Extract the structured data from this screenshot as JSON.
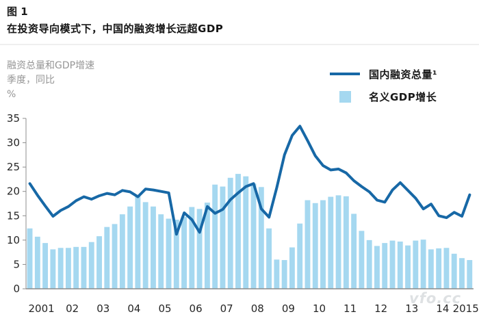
{
  "header": {
    "figure_label": "图 1",
    "title": "在投资导向模式下，中国的融资增长远超GDP"
  },
  "y_axis_unit": {
    "line1": "融资总量和GDP增速",
    "line2": "季度，同比",
    "line3": "%"
  },
  "legend": {
    "line_label": "国内融资总量¹",
    "bar_label": "名义GDP增长"
  },
  "watermark": "vfo.cc",
  "colors": {
    "line": "#1768a6",
    "bar": "#a5d8f0",
    "axis": "#8c8c8c",
    "tick_text": "#262626"
  },
  "chart_data": {
    "type": "bar",
    "note": "quarterly data 2001Q1–2015Q2; dark line = domestic total financing growth, light bars = nominal GDP growth, % y/y",
    "x_year_labels": [
      "2001",
      "02",
      "03",
      "04",
      "05",
      "06",
      "07",
      "08",
      "09",
      "10",
      "11",
      "12",
      "13",
      "14",
      "2015"
    ],
    "bars_per_year": [
      4,
      4,
      4,
      4,
      4,
      4,
      4,
      4,
      4,
      4,
      4,
      4,
      4,
      4,
      2
    ],
    "ylim": [
      0,
      35
    ],
    "yticks": [
      0,
      5,
      10,
      15,
      20,
      25,
      30,
      35
    ],
    "grid": false,
    "legend_position": "top-right",
    "series": [
      {
        "name": "国内融资总量¹",
        "type": "line",
        "color": "#1768a6",
        "values": [
          21.6,
          19.2,
          17.0,
          14.9,
          16.1,
          16.9,
          18.1,
          18.9,
          18.4,
          19.1,
          19.6,
          19.3,
          20.2,
          19.9,
          18.9,
          20.5,
          20.3,
          20.0,
          19.7,
          11.2,
          15.6,
          14.2,
          11.6,
          16.9,
          15.5,
          16.3,
          18.3,
          19.7,
          21.0,
          21.6,
          16.4,
          14.7,
          20.8,
          27.5,
          31.5,
          33.4,
          30.4,
          27.3,
          25.3,
          24.4,
          24.6,
          23.8,
          22.2,
          21.0,
          19.9,
          18.2,
          17.8,
          20.3,
          21.8,
          20.2,
          18.6,
          16.4,
          17.4,
          15.0,
          14.6,
          15.7,
          14.9,
          19.3
        ]
      },
      {
        "name": "名义GDP增长",
        "type": "bar",
        "color": "#a5d8f0",
        "values": [
          12.4,
          10.7,
          9.4,
          8.1,
          8.4,
          8.4,
          8.6,
          8.6,
          9.6,
          10.8,
          12.7,
          13.3,
          15.3,
          16.9,
          19.0,
          17.8,
          16.9,
          15.3,
          14.4,
          14.2,
          14.8,
          16.8,
          16.4,
          17.7,
          21.4,
          21.0,
          22.8,
          23.6,
          23.1,
          21.6,
          20.9,
          12.4,
          6.0,
          5.9,
          8.5,
          13.4,
          18.2,
          17.6,
          18.2,
          18.9,
          19.2,
          19.0,
          15.4,
          11.9,
          10.0,
          8.8,
          9.4,
          9.9,
          9.7,
          8.9,
          9.9,
          10.1,
          8.1,
          8.3,
          8.4,
          7.2,
          6.3,
          5.9
        ]
      }
    ]
  }
}
